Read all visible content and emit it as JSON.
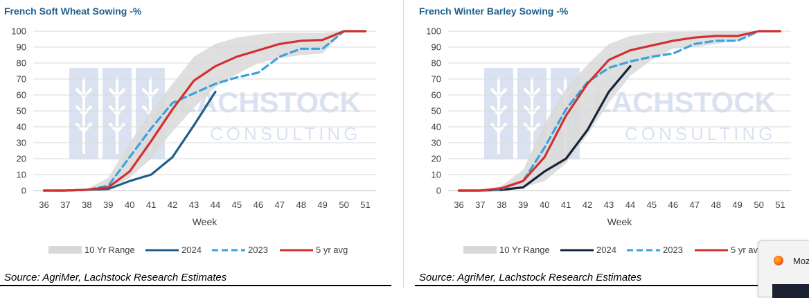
{
  "colors": {
    "range": "#d9d9d9",
    "y2024_left": "#1f5f8b",
    "y2024_right": "#14243a",
    "y2023": "#3aa3dc",
    "avg5": "#d32f2f",
    "title": "#1f5f8b",
    "grid": "#d9d9d9"
  },
  "watermark": {
    "line1": "LACHSTOCK",
    "line2": "CONSULTING"
  },
  "charts": [
    {
      "title": "French Soft Wheat Sowing -%",
      "source": "Source: AgriMer, Lachstock Research Estimates",
      "legend": [
        "10 Yr Range",
        "2024",
        "2023",
        "5 yr avg"
      ]
    },
    {
      "title": "French Winter Barley Sowing -%",
      "source": "Source: AgriMer, Lachstock Research Estimates",
      "legend": [
        "10 Yr Range",
        "2024",
        "2023",
        "5 yr avg"
      ]
    }
  ],
  "chart_data": [
    {
      "type": "line",
      "title": "French Soft Wheat Sowing -%",
      "xlabel": "Week",
      "ylabel": "",
      "x": [
        36,
        37,
        38,
        39,
        40,
        41,
        42,
        43,
        44,
        45,
        46,
        47,
        48,
        49,
        50,
        51
      ],
      "ylim": [
        0,
        100
      ],
      "yticks": [
        0,
        10,
        20,
        30,
        40,
        50,
        60,
        70,
        80,
        90,
        100
      ],
      "grid": true,
      "legend_position": "bottom",
      "range": {
        "name": "10 Yr Range",
        "low": [
          0,
          0,
          0,
          1,
          8,
          20,
          37,
          52,
          65,
          73,
          80,
          83,
          85,
          86,
          100,
          100
        ],
        "high": [
          0,
          0,
          1,
          8,
          30,
          50,
          67,
          84,
          92,
          96,
          98,
          99,
          99,
          99,
          100,
          100
        ]
      },
      "series": [
        {
          "name": "2024",
          "style": "solid",
          "values": [
            0,
            0,
            0.5,
            1,
            6,
            10,
            21,
            41,
            62,
            null,
            null,
            null,
            null,
            null,
            null,
            null
          ]
        },
        {
          "name": "2023",
          "style": "dashed",
          "values": [
            0,
            0,
            0.5,
            3,
            21,
            39,
            55,
            61,
            67,
            71,
            74,
            84,
            89,
            89,
            100,
            100
          ]
        },
        {
          "name": "5 yr avg",
          "style": "solid",
          "values": [
            0,
            0,
            0.5,
            2,
            12,
            31,
            51,
            69,
            78,
            84,
            88,
            92,
            94,
            94.5,
            100,
            100
          ]
        }
      ]
    },
    {
      "type": "line",
      "title": "French Winter Barley Sowing -%",
      "xlabel": "Week",
      "ylabel": "",
      "x": [
        36,
        37,
        38,
        39,
        40,
        41,
        42,
        43,
        44,
        45,
        46,
        47,
        48,
        49,
        50,
        51
      ],
      "ylim": [
        0,
        100
      ],
      "yticks": [
        0,
        10,
        20,
        30,
        40,
        50,
        60,
        70,
        80,
        90,
        100
      ],
      "grid": true,
      "legend_position": "bottom",
      "range": {
        "name": "10 Yr Range",
        "low": [
          0,
          0,
          0,
          2,
          6,
          17,
          35,
          55,
          72,
          82,
          89,
          90,
          92,
          94,
          100,
          100
        ],
        "high": [
          0,
          0,
          3,
          13,
          42,
          64,
          79,
          92,
          97,
          99,
          99.5,
          99.7,
          99.8,
          99.9,
          100,
          100
        ]
      },
      "series": [
        {
          "name": "2024",
          "style": "solid",
          "values": [
            0,
            0,
            0.5,
            2,
            12,
            20,
            38,
            62,
            78,
            null,
            null,
            null,
            null,
            null,
            null,
            null
          ]
        },
        {
          "name": "2023",
          "style": "dashed",
          "values": [
            0,
            0,
            1,
            6,
            27,
            51,
            68,
            77,
            81,
            84,
            86,
            92,
            94,
            94,
            100,
            100
          ]
        },
        {
          "name": "5 yr avg",
          "style": "solid",
          "values": [
            0,
            0,
            1.5,
            6,
            21,
            47,
            67,
            82,
            88,
            91,
            94,
            96,
            97,
            97,
            100,
            100
          ]
        }
      ]
    }
  ],
  "popup": {
    "label": "Moz"
  }
}
